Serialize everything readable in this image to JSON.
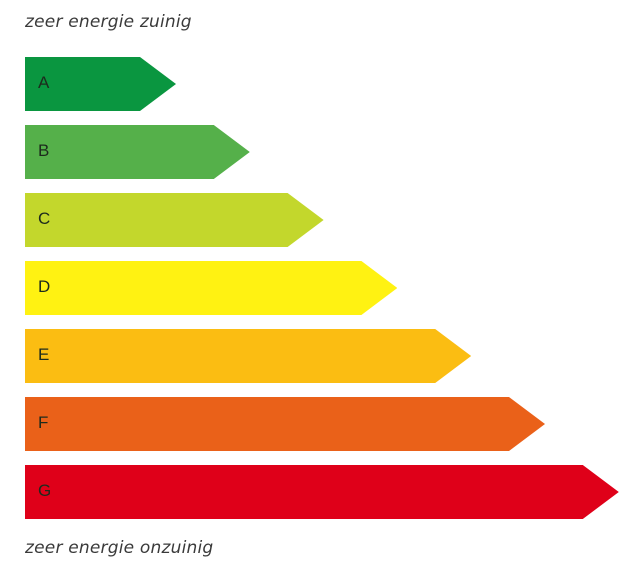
{
  "top_label": "zeer energie zuinig",
  "bottom_label": "zeer energie onzuinig",
  "classes": [
    {
      "letter": "A",
      "color": "#0a9640"
    },
    {
      "letter": "B",
      "color": "#55b04a"
    },
    {
      "letter": "C",
      "color": "#c3d72c"
    },
    {
      "letter": "D",
      "color": "#fff212"
    },
    {
      "letter": "E",
      "color": "#fbbd12"
    },
    {
      "letter": "F",
      "color": "#ea6119"
    },
    {
      "letter": "G",
      "color": "#df0019"
    }
  ]
}
